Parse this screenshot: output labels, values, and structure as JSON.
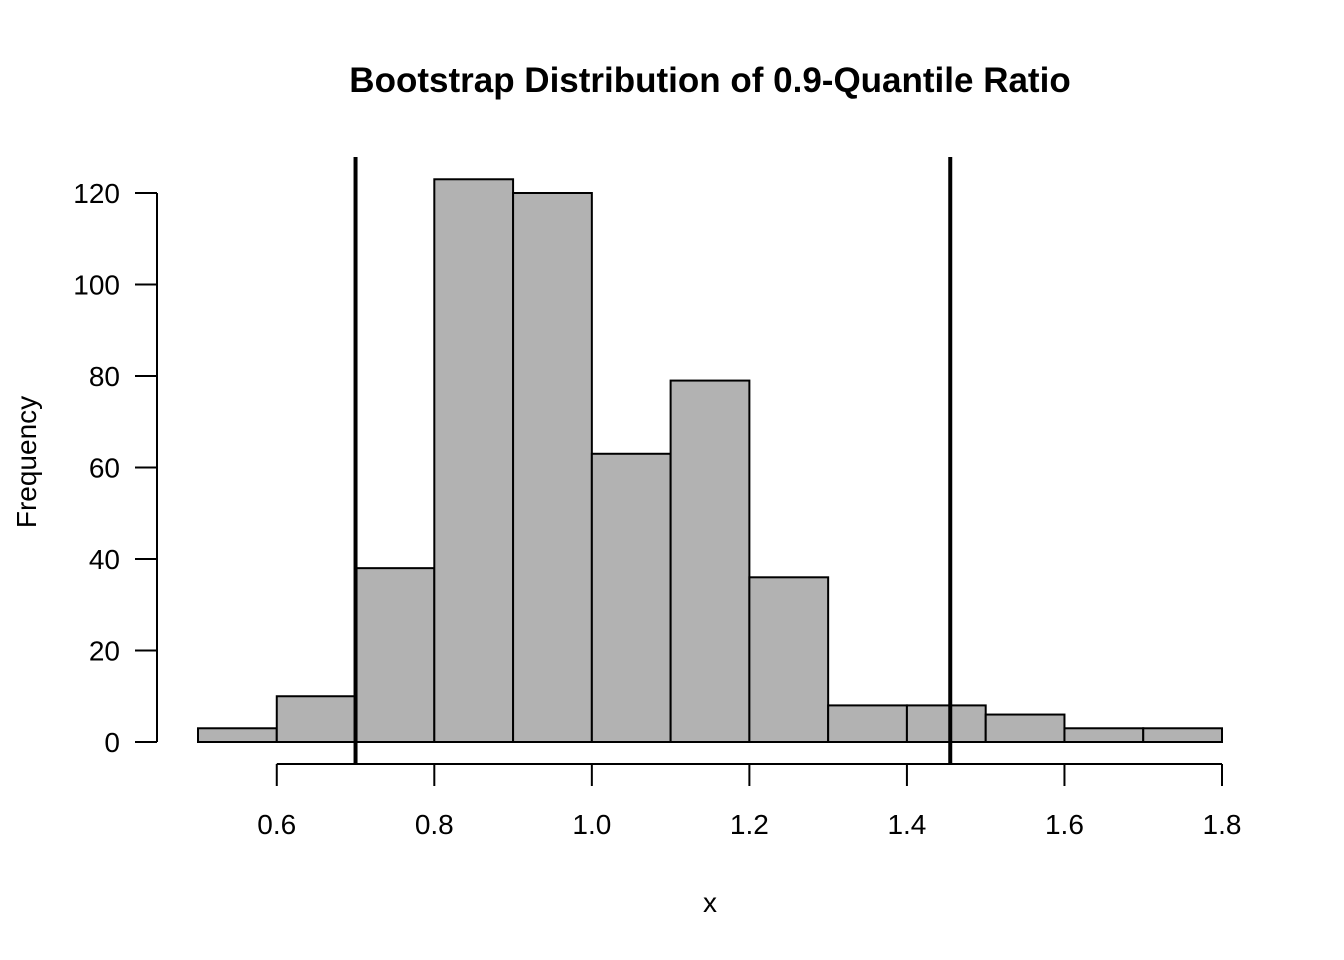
{
  "chart_data": {
    "type": "bar",
    "title": "Bootstrap Distribution of 0.9-Quantile Ratio",
    "xlabel": "x",
    "ylabel": "Frequency",
    "bin_edges": [
      0.5,
      0.6,
      0.7,
      0.8,
      0.9,
      1.0,
      1.1,
      1.2,
      1.3,
      1.4,
      1.5,
      1.6,
      1.7,
      1.8
    ],
    "values": [
      3,
      10,
      38,
      123,
      120,
      63,
      79,
      36,
      8,
      8,
      6,
      3,
      3
    ],
    "xlim": [
      0.5,
      1.8
    ],
    "ylim": [
      0,
      120
    ],
    "x_ticks": [
      0.6,
      0.8,
      1.0,
      1.2,
      1.4,
      1.6,
      1.8
    ],
    "x_tick_labels": [
      "0.6",
      "0.8",
      "1.0",
      "1.2",
      "1.4",
      "1.6",
      "1.8"
    ],
    "y_ticks": [
      0,
      20,
      40,
      60,
      80,
      100,
      120
    ],
    "y_tick_labels": [
      "0",
      "20",
      "40",
      "60",
      "80",
      "100",
      "120"
    ],
    "reference_lines_x": [
      0.7,
      1.455
    ],
    "bar_color": "#b2b2b2",
    "grid": false,
    "legend": "none"
  }
}
